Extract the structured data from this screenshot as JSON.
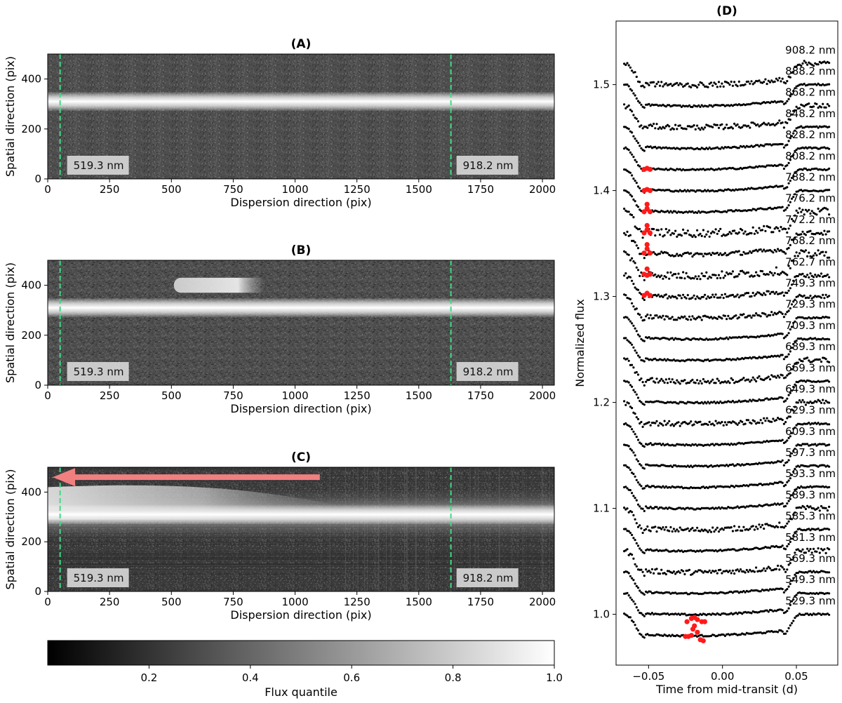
{
  "chart_data": [
    {
      "type": "heatmap",
      "title": "(A)",
      "xlabel": "Dispersion direction (pix)",
      "ylabel": "Spatial direction (pix)",
      "xlim": [
        0,
        2048
      ],
      "ylim": [
        0,
        500
      ],
      "xticks": [
        "0",
        "250",
        "500",
        "750",
        "1000",
        "1250",
        "1500",
        "1750",
        "2000"
      ],
      "yticks": [
        "0",
        "200",
        "400"
      ],
      "marker_lines_x": [
        50,
        1630
      ],
      "marker_labels": [
        "519.3 nm",
        "918.2 nm"
      ],
      "trace_center_y": 310,
      "secondary_blob": null,
      "arrow": null
    },
    {
      "type": "heatmap",
      "title": "(B)",
      "xlabel": "Dispersion direction (pix)",
      "ylabel": "Spatial direction (pix)",
      "xlim": [
        0,
        2048
      ],
      "ylim": [
        0,
        500
      ],
      "xticks": [
        "0",
        "250",
        "500",
        "750",
        "1000",
        "1250",
        "1500",
        "1750",
        "2000"
      ],
      "yticks": [
        "0",
        "200",
        "400"
      ],
      "marker_lines_x": [
        50,
        1630
      ],
      "marker_labels": [
        "519.3 nm",
        "918.2 nm"
      ],
      "trace_center_y": 310,
      "secondary_blob": {
        "x_from": 510,
        "x_to": 880,
        "y": 400
      },
      "arrow": null
    },
    {
      "type": "heatmap",
      "title": "(C)",
      "xlabel": "Dispersion direction (pix)",
      "ylabel": "Spatial direction (pix)",
      "xlim": [
        0,
        2048
      ],
      "ylim": [
        0,
        500
      ],
      "xticks": [
        "0",
        "250",
        "500",
        "750",
        "1000",
        "1250",
        "1500",
        "1750",
        "2000"
      ],
      "yticks": [
        "0",
        "200",
        "400"
      ],
      "marker_lines_x": [
        50,
        1630
      ],
      "marker_labels": [
        "519.3 nm",
        "918.2 nm"
      ],
      "trace_center_y": 310,
      "secondary_blob": {
        "x_from": 0,
        "x_to": 1250,
        "y": 390
      },
      "arrow": {
        "x_from": 1100,
        "x_to": 20,
        "y": 460,
        "color": "#f08080"
      }
    },
    {
      "type": "colorbar",
      "xlabel": "Flux quantile",
      "range": [
        0,
        1
      ],
      "ticks": [
        "0.2",
        "0.4",
        "0.6",
        "0.8",
        "1.0"
      ]
    },
    {
      "type": "scatter",
      "title": "(D)",
      "xlabel": "Time from mid-transit (d)",
      "ylabel": "Normalized flux",
      "xlim": [
        -0.072,
        0.078
      ],
      "ylim": [
        0.952,
        1.56
      ],
      "xticks": [
        "−0.05",
        "0.00",
        "0.05"
      ],
      "yticks": [
        "1.0",
        "1.1",
        "1.2",
        "1.3",
        "1.4",
        "1.5"
      ],
      "transit": {
        "t_ingress_start": -0.066,
        "t_ingress_end": -0.052,
        "t_egress_start": 0.041,
        "t_egress_end": 0.052,
        "depth": 0.022
      },
      "series": [
        {
          "name": "529.3 nm",
          "offset": 1.0
        },
        {
          "name": "549.3 nm",
          "offset": 1.02
        },
        {
          "name": "569.3 nm",
          "offset": 1.04
        },
        {
          "name": "581.3 nm",
          "offset": 1.06
        },
        {
          "name": "585.3 nm",
          "offset": 1.08
        },
        {
          "name": "589.3 nm",
          "offset": 1.1
        },
        {
          "name": "593.3 nm",
          "offset": 1.12
        },
        {
          "name": "597.3 nm",
          "offset": 1.14
        },
        {
          "name": "609.3 nm",
          "offset": 1.16
        },
        {
          "name": "629.3 nm",
          "offset": 1.18
        },
        {
          "name": "649.3 nm",
          "offset": 1.2
        },
        {
          "name": "669.3 nm",
          "offset": 1.22
        },
        {
          "name": "689.3 nm",
          "offset": 1.24
        },
        {
          "name": "709.3 nm",
          "offset": 1.26
        },
        {
          "name": "729.3 nm",
          "offset": 1.28
        },
        {
          "name": "749.3 nm",
          "offset": 1.3
        },
        {
          "name": "762.7 nm",
          "offset": 1.32
        },
        {
          "name": "768.2 nm",
          "offset": 1.34
        },
        {
          "name": "772.2 nm",
          "offset": 1.36
        },
        {
          "name": "776.2 nm",
          "offset": 1.38
        },
        {
          "name": "788.2 nm",
          "offset": 1.4
        },
        {
          "name": "808.2 nm",
          "offset": 1.42
        },
        {
          "name": "828.2 nm",
          "offset": 1.44
        },
        {
          "name": "848.2 nm",
          "offset": 1.46
        },
        {
          "name": "868.2 nm",
          "offset": 1.48
        },
        {
          "name": "888.2 nm",
          "offset": 1.5
        },
        {
          "name": "908.2 nm",
          "offset": 1.52
        }
      ],
      "outliers": [
        {
          "t": -0.053,
          "flux": 1.42
        },
        {
          "t": -0.051,
          "flux": 1.421
        },
        {
          "t": -0.049,
          "flux": 1.42
        },
        {
          "t": -0.053,
          "flux": 1.4
        },
        {
          "t": -0.051,
          "flux": 1.401
        },
        {
          "t": -0.049,
          "flux": 1.4
        },
        {
          "t": -0.053,
          "flux": 1.38
        },
        {
          "t": -0.051,
          "flux": 1.383
        },
        {
          "t": -0.049,
          "flux": 1.38
        },
        {
          "t": -0.051,
          "flux": 1.387
        },
        {
          "t": -0.053,
          "flux": 1.36
        },
        {
          "t": -0.051,
          "flux": 1.363
        },
        {
          "t": -0.049,
          "flux": 1.36
        },
        {
          "t": -0.051,
          "flux": 1.367
        },
        {
          "t": -0.053,
          "flux": 1.341
        },
        {
          "t": -0.051,
          "flux": 1.345
        },
        {
          "t": -0.049,
          "flux": 1.341
        },
        {
          "t": -0.051,
          "flux": 1.349
        },
        {
          "t": -0.053,
          "flux": 1.321
        },
        {
          "t": -0.051,
          "flux": 1.32
        },
        {
          "t": -0.049,
          "flux": 1.321
        },
        {
          "t": -0.051,
          "flux": 1.326
        },
        {
          "t": -0.053,
          "flux": 1.301
        },
        {
          "t": -0.051,
          "flux": 1.303
        },
        {
          "t": -0.049,
          "flux": 1.301
        },
        {
          "t": -0.025,
          "flux": 0.979
        },
        {
          "t": -0.023,
          "flux": 0.979
        },
        {
          "t": -0.021,
          "flux": 0.98
        },
        {
          "t": -0.02,
          "flux": 0.986
        },
        {
          "t": -0.019,
          "flux": 0.989
        },
        {
          "t": -0.017,
          "flux": 0.983
        },
        {
          "t": -0.015,
          "flux": 0.976
        },
        {
          "t": -0.013,
          "flux": 0.975
        },
        {
          "t": -0.024,
          "flux": 0.993
        },
        {
          "t": -0.021,
          "flux": 0.996
        },
        {
          "t": -0.019,
          "flux": 0.997
        },
        {
          "t": -0.017,
          "flux": 0.995
        },
        {
          "t": -0.014,
          "flux": 0.993
        },
        {
          "t": -0.012,
          "flux": 0.993
        }
      ]
    }
  ]
}
